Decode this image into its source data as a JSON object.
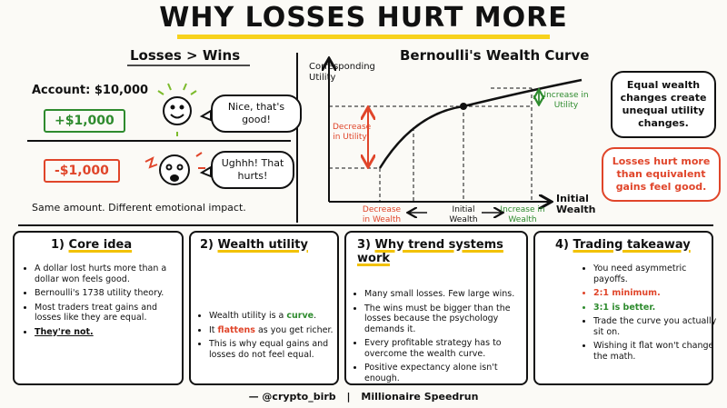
{
  "title": "WHY LOSSES HURT MORE",
  "losses_wins": {
    "heading": "Losses > Wins",
    "account": "Account: $10,000",
    "gain": "+$1,000",
    "gain_bubble": "Nice, that's good!",
    "loss": "-$1,000",
    "loss_bubble": "Ughhh! That hurts!",
    "caption": "Same amount. Different emotional impact."
  },
  "curve": {
    "heading": "Bernoulli's Wealth Curve",
    "y_label": "Corresponding Utility",
    "x_label": "Initial Wealth",
    "decrease_utility": "Decrease in Utility",
    "increase_utility": "Increase in Utility",
    "decrease_wealth": "Decrease in Wealth",
    "initial_wealth": "Initial Wealth",
    "increase_wealth": "Increase in Wealth"
  },
  "notes": [
    "Equal wealth changes create unequal utility changes.",
    "Losses hurt more than equivalent gains feel good."
  ],
  "panels": [
    {
      "number": "1)",
      "title": "Core idea",
      "bullets": [
        "A dollar lost hurts more than a dollar won feels good.",
        "Bernoulli's 1738 utility theory.",
        "Most traders treat gains and losses like they are equal.",
        "They're not."
      ]
    },
    {
      "number": "2)",
      "title": "Wealth utility",
      "bullets": [
        [
          "Wealth utility is a ",
          "curve",
          "."
        ],
        [
          "It ",
          "flattens",
          " as you get richer."
        ],
        "This is why equal gains and losses do not feel equal."
      ]
    },
    {
      "number": "3)",
      "title": "Why trend systems work",
      "bullets": [
        "Many small losses. Few large wins.",
        "The wins must be bigger than the losses because the psychology demands it.",
        "Every profitable strategy has to overcome the wealth curve.",
        "Positive expectancy alone isn't enough."
      ]
    },
    {
      "number": "4)",
      "title": "Trading takeaway",
      "bullets": [
        "You need asymmetric payoffs.",
        "2:1 minimum.",
        "3:1 is better.",
        "Trade the curve you actually sit on.",
        "Wishing it flat won't change the math."
      ]
    }
  ],
  "footer": {
    "handle": "— @crypto_birb",
    "brand": "Millionaire Speedrun"
  }
}
